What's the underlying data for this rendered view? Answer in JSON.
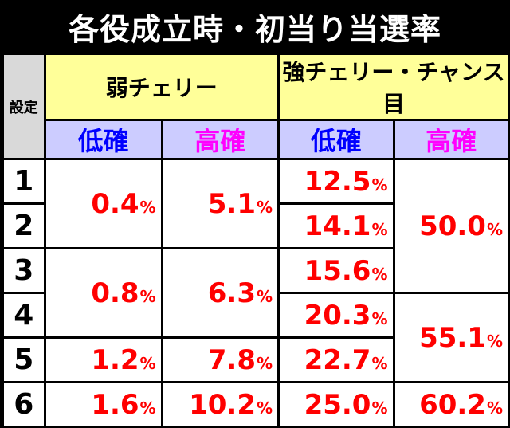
{
  "title": "各役成立時・初当り当選率",
  "header": {
    "setting": "設定",
    "weak_cherry": "弱チェリー",
    "strong_group": "強チェリー・チャンス目",
    "low": "低確",
    "high": "高確"
  },
  "rows": [
    "1",
    "2",
    "3",
    "4",
    "5",
    "6"
  ],
  "weak_low": [
    "0.4",
    "0.8",
    "1.2",
    "1.6"
  ],
  "weak_high": [
    "5.1",
    "6.3",
    "7.8",
    "10.2"
  ],
  "strong_low": [
    "12.5",
    "14.1",
    "15.6",
    "20.3",
    "22.7",
    "25.0"
  ],
  "strong_high": [
    "50.0",
    "55.1",
    "60.2"
  ],
  "percent_sign": "%"
}
